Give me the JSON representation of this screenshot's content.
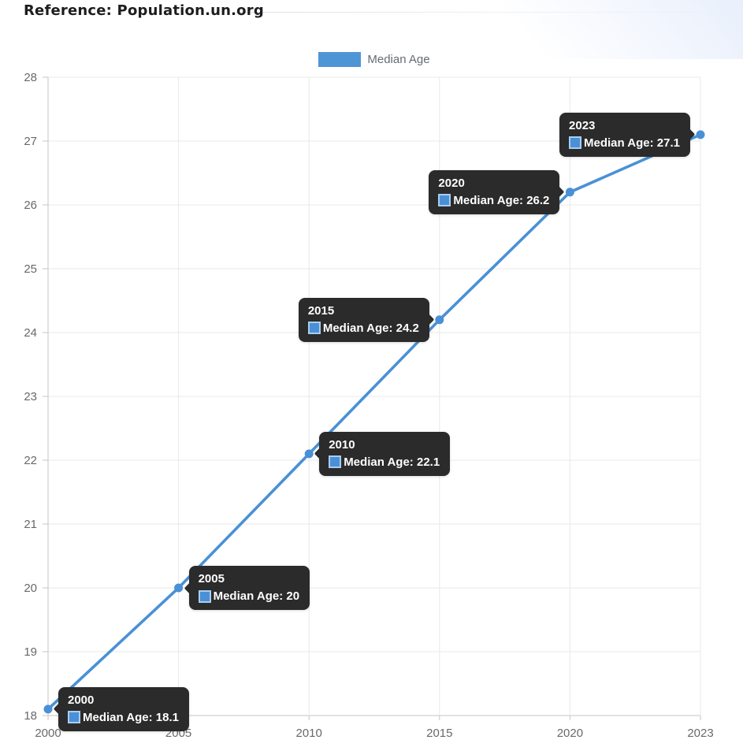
{
  "header": {
    "title": "Reference: Population.un.org"
  },
  "legend": {
    "label": "Median Age",
    "swatch_color": "#4e95d6"
  },
  "chart_data": {
    "type": "line",
    "title": "Reference: Population.un.org",
    "xlabel": "",
    "ylabel": "",
    "categories": [
      "2000",
      "2005",
      "2010",
      "2015",
      "2020",
      "2023"
    ],
    "series": [
      {
        "name": "Median Age",
        "values": [
          18.1,
          20,
          22.1,
          24.2,
          26.2,
          27.1
        ]
      }
    ],
    "ylim": [
      18,
      28
    ],
    "y_ticks": [
      18,
      19,
      20,
      21,
      22,
      23,
      24,
      25,
      26,
      27,
      28
    ],
    "grid": true,
    "legend_position": "top-center",
    "line_color": "#4a90d6",
    "marker_color": "#4a90d6",
    "grid_color": "#e8e8e8",
    "axis_color": "#c6c6c6",
    "axis_label_color": "#66696d",
    "tooltip": {
      "bg": "#2b2b2b",
      "text_color": "#ffffff",
      "separator": ": ",
      "swatch_fill": "#4a90d6",
      "swatch_border": "#a9cdf0"
    },
    "tooltip_sides": [
      "right",
      "right",
      "right",
      "left",
      "left",
      "left"
    ]
  }
}
